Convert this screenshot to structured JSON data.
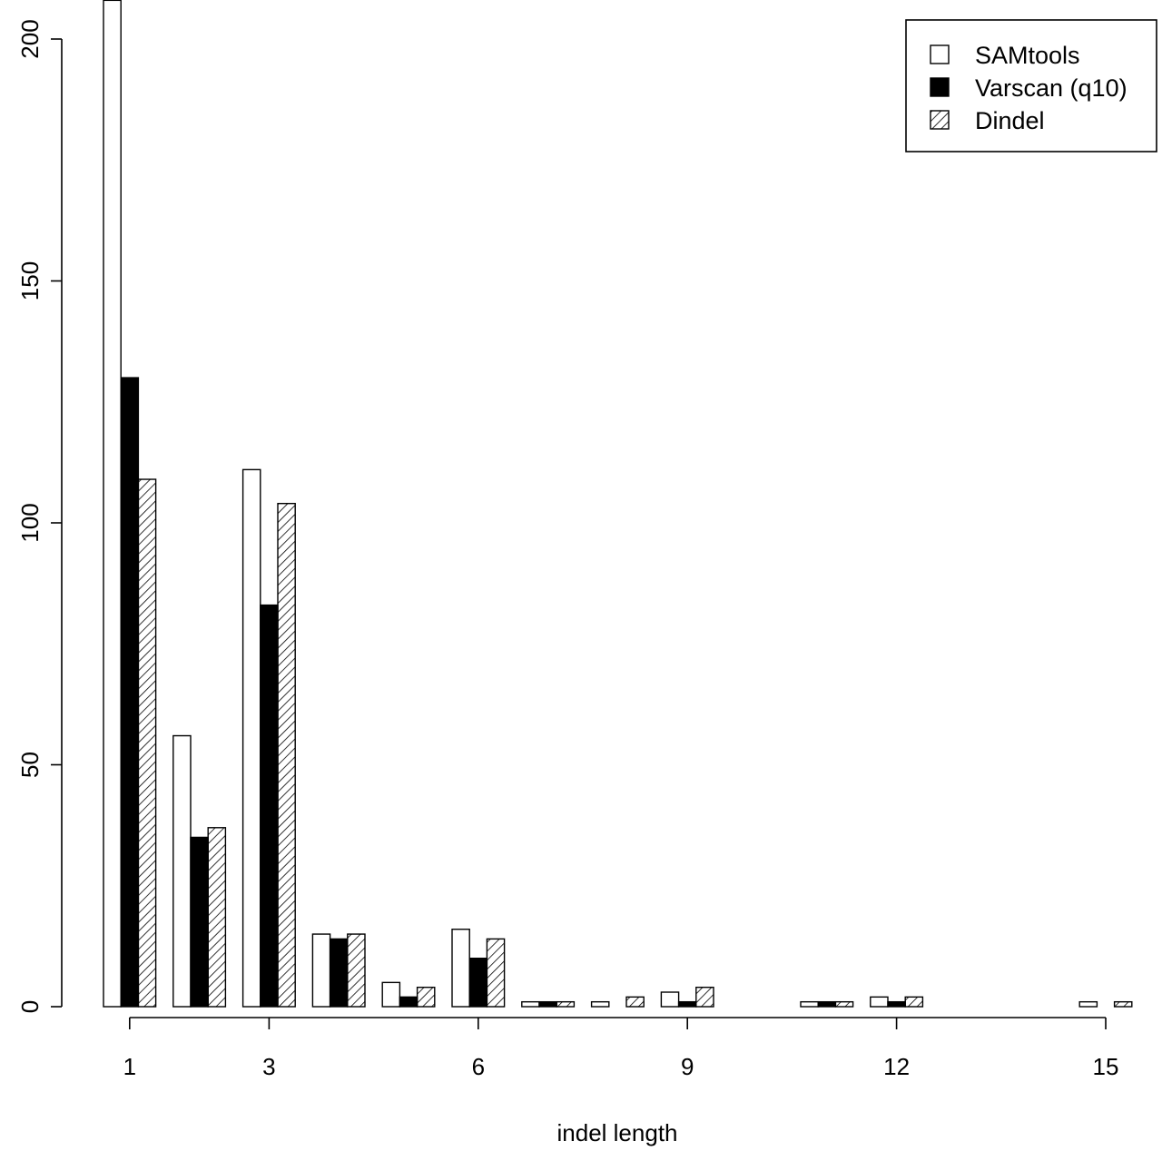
{
  "chart_data": {
    "type": "bar",
    "title": "",
    "xlabel": "indel length",
    "ylabel": "",
    "categories": [
      1,
      2,
      3,
      4,
      5,
      6,
      7,
      8,
      9,
      10,
      11,
      12,
      13,
      14,
      15
    ],
    "x_tick_labels": [
      "1",
      "3",
      "6",
      "9",
      "12",
      "15"
    ],
    "x_tick_values": [
      1,
      3,
      6,
      9,
      12,
      15
    ],
    "y_ticks": [
      0,
      50,
      100,
      150,
      200
    ],
    "ylim": [
      0,
      208
    ],
    "grid": false,
    "legend_position": "top-right",
    "series": [
      {
        "name": "SAMtools",
        "fill": "white",
        "values": [
          208,
          56,
          111,
          15,
          5,
          16,
          1,
          1,
          3,
          0,
          1,
          2,
          0,
          0,
          1
        ]
      },
      {
        "name": "Varscan (q10)",
        "fill": "black",
        "values": [
          130,
          35,
          83,
          14,
          2,
          10,
          1,
          0,
          1,
          0,
          1,
          1,
          0,
          0,
          0
        ]
      },
      {
        "name": "Dindel",
        "fill": "hatched",
        "values": [
          109,
          37,
          104,
          15,
          4,
          14,
          1,
          2,
          4,
          0,
          1,
          2,
          0,
          0,
          1
        ]
      }
    ]
  }
}
